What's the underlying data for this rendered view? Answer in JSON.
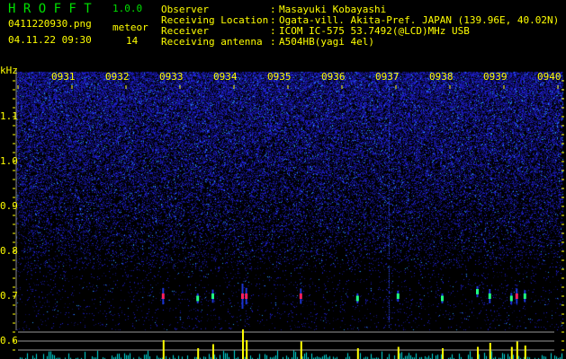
{
  "header": {
    "app_name": "H R O F F T",
    "version": "1.0.0",
    "filename": "0411220930.png",
    "datetime": "04.11.22 09:30",
    "meteor_label": "meteor",
    "meteor_count": "14",
    "info": [
      {
        "label": "Observer",
        "value": "Masayuki Kobayashi"
      },
      {
        "label": "Receiving Location",
        "value": "Ogata-vill. Akita-Pref. JAPAN (139.96E, 40.02N)"
      },
      {
        "label": "Receiver",
        "value": "ICOM IC-575 53.7492(@LCD)MHz USB"
      },
      {
        "label": "Receiving antenna",
        "value": "A504HB(yagi 4el)"
      }
    ],
    "separator": ":"
  },
  "colors": {
    "text": "#ffff00",
    "title": "#00e000",
    "noise": "#2020c0",
    "count_bar": "#00e0e0",
    "meteor_bar": "#ffff00"
  },
  "chart_data": {
    "type": "heatmap",
    "ylabel": "kHz",
    "x_ticks": [
      "0931",
      "0932",
      "0933",
      "0934",
      "0935",
      "0936",
      "0937",
      "0938",
      "0939",
      "0940"
    ],
    "x_range_minutes": [
      0,
      10
    ],
    "y_ticks": [
      "1.1",
      "1.0",
      "0.9",
      "0.8",
      "0.7",
      "0.6"
    ],
    "ylim": [
      0.58,
      1.2
    ],
    "meteors": [
      {
        "time_min": 2.68,
        "freq_khz": 0.7,
        "strength": 0.6
      },
      {
        "time_min": 3.32,
        "freq_khz": 0.695,
        "strength": 0.3
      },
      {
        "time_min": 3.6,
        "freq_khz": 0.7,
        "strength": 0.45
      },
      {
        "time_min": 4.15,
        "freq_khz": 0.7,
        "strength": 1.0
      },
      {
        "time_min": 4.22,
        "freq_khz": 0.7,
        "strength": 0.6
      },
      {
        "time_min": 5.23,
        "freq_khz": 0.7,
        "strength": 0.55
      },
      {
        "time_min": 6.28,
        "freq_khz": 0.695,
        "strength": 0.3
      },
      {
        "time_min": 7.03,
        "freq_khz": 0.7,
        "strength": 0.35
      },
      {
        "time_min": 7.85,
        "freq_khz": 0.695,
        "strength": 0.3
      },
      {
        "time_min": 8.5,
        "freq_khz": 0.71,
        "strength": 0.35
      },
      {
        "time_min": 8.73,
        "freq_khz": 0.7,
        "strength": 0.5
      },
      {
        "time_min": 9.13,
        "freq_khz": 0.695,
        "strength": 0.35
      },
      {
        "time_min": 9.23,
        "freq_khz": 0.7,
        "strength": 0.55
      },
      {
        "time_min": 9.38,
        "freq_khz": 0.7,
        "strength": 0.4
      }
    ]
  }
}
